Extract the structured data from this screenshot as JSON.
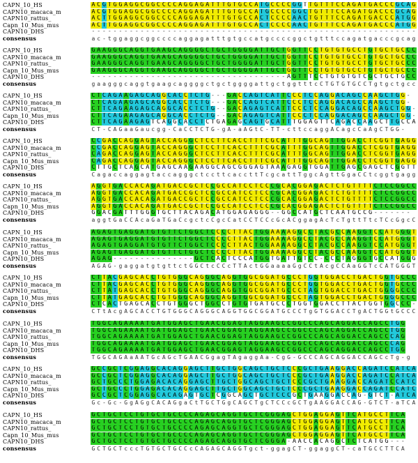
{
  "alignment": {
    "blocks": [
      {
        "rows": [
          {
            "name": "CAPN_10_HS",
            "seq": "ACGTGGAGGCGGCCCCAGGAGATTTGTGCCATGCCCCGGTTGTTTCCAGATGACCCGCAG"
          },
          {
            "name": "CAPN10_macaca_m",
            "seq": "ACGTGGAGGCGGCCCCAGGAGATTTGTGCCATGCCCCGGCTGTTTCCAGATGACCCGCAG"
          },
          {
            "name": "CAPN10_rattus_",
            "seq": "ACTTGGAGGCGGCCCCAGGAGATTTGTGCCACTCCCCAACTGTTTCCAGATGACCCATGG"
          },
          {
            "name": "Capn_10_Mus_mus",
            "seq": "ACTTGGAGGCGGCCCCAGGAGATTTGTGCCACTCCCCAACTGTTTCCAGATGACCCATGG"
          },
          {
            "name": "CAPN10_DHS",
            "seq": "------------------------------------------------------------"
          },
          {
            "name": "consensus",
            "seq": "ac-tggaggcggccccaggagatttgtgccatgccccggctgtttccagatgacccgcag",
            "consensus": true
          }
        ]
      },
      {
        "rows": [
          {
            "name": "CAPN_10_HS",
            "seq": "GAAGGGCAGGTGAAGCAGGGGCTGCTGGGGATTGCTGGTTCCTGTGTGCCTGTGCTGCCC"
          },
          {
            "name": "CAPN10_macaca_m",
            "seq": "GAAGGGCAGGTGAAGCAGGGGCTGCTGGGGATTGCTGGTTCCTGTGTGCCTGTGCTGCCC"
          },
          {
            "name": "CAPN10_rattus_",
            "seq": "GAAGGGCAGGTGAAGCAGGGGCTGCTGGGGATTGCTGGTTCCTGTGTGCCTGTGCTGCCC"
          },
          {
            "name": "Capn_10_Mus_mus",
            "seq": "GAAGGGCAGGTGAAGCAGGGGCTGCTGGGGATTGCTGGTTCCTGTGTGCCTGTGCTGCCC"
          },
          {
            "name": "CAPN10_DHS",
            "seq": "------------------------------------AGTTTCCTGTGTGTCGCTGCTGCC"
          },
          {
            "name": "consensus",
            "seq": "gaagggcaggtgaagcaggggctgctggggattgctggtttcCTGTGTGCCTgtgctgccc",
            "consensus": true
          }
        ]
      },
      {
        "rows": [
          {
            "name": "CAPN_10_HS",
            "seq": "CTCAGAAGAGCAGGCACCTCTG---GACCAGTCATTCCCTCCAGGACAGCCAAGCTGG-"
          },
          {
            "name": "CAPN10_macaca_m",
            "seq": "CTCAGAAGAGCAGGCACCTCTG---GACCAGTCATTCCCTCCAGGACAGCCAAGCTGG-"
          },
          {
            "name": "CAPN10_rattus_",
            "seq": "CTTCAGAAGAGCAGGCACCTCTG--GACAGAGTCATTCCCTCCAGGACAGCCAAGCTGG-"
          },
          {
            "name": "Capn_10_Mus_mus",
            "seq": "CTTCAGAAGAGCAGGCACCTCTG--GACAGAGTCATTCCCTCCAGGACAGCCAAGCTGG-"
          },
          {
            "name": "CAPN10_DHS",
            "seq": "CTTCAGAAGAGTCAGGCACCTCTGAGAGCAGTGCATTTGGAGTTCAGACCAAGCTTGCCA"
          },
          {
            "name": "consensus",
            "seq": "CT-CAGaaGaucgg-CaCCTCTG-gA-aAGtC-TT-cttccaggACagcCaAgCTGG-",
            "consensus": true
          }
        ]
      },
      {
        "rows": [
          {
            "name": "CAPN_10_HS",
            "seq": "CCGACCAGGAGTACCAGGGCTCCTTCACCTTTCGCATTTGGCAGTTGGACCTCGGTGAGG"
          },
          {
            "name": "CAPN10_macaca_m",
            "seq": "CCGACCAGGAGTACCAGGGCTCCTTCACCTTTCGCATTTGGCAGTTGGACCTCGGTGAGG"
          },
          {
            "name": "CAPN10_rattus_",
            "seq": "CAGACCAGGAGTACCAGGGCTCCTTCACCTTTCGCATTTGGCAGTTGGACCTCGGTGAGG"
          },
          {
            "name": "Capn_10_Mus_mus",
            "seq": "CAGACCAGGAGTACCAGGGCTCCTTCACCTTTCGCATTTGGCAGTTGGACCTCGGTGAGG"
          },
          {
            "name": "CAPN10_DHS",
            "seq": "CTTGCTCAGCATGAGCAAGAAGGCAGCGGGAGTAAAGAGGTGGATTGAGCGAGCTCGGTT"
          },
          {
            "name": "consensus",
            "seq": "CagaccaggagtaccagggctccttcaccttTcgcattTggcAgttGgaCCtcggtgagg",
            "consensus": true
          }
        ]
      },
      {
        "rows": [
          {
            "name": "CAPN_10_HS",
            "seq": "AGGTGACCACAGATGACCGCTCCGCCATCCTCCCGCACGGAGACTCTGTTTTCTCCGGCC"
          },
          {
            "name": "CAPN10_macaca_m",
            "seq": "AGGTGACCACAGATGACCGCTCCGCCATCCTCCCGCACGGAGACTCTGTTTTCTCCGGCC"
          },
          {
            "name": "CAPN10_rattus_",
            "seq": "AGGTGACCACAGATGACCGCTCCGCCATCCTCCCGCACGGAGACTCTGTTTTCTCCGGCC"
          },
          {
            "name": "Capn_10_Mus_mus",
            "seq": "AGGTGACCACAGATGACCGCTCCGCCATCCTCCCGCACGGAGACTCTGTTTTCTCCGGCC"
          },
          {
            "name": "CAPN10_DHS",
            "seq": "GGACGATTTGGGTGCTTACAGACATGGAGAGGG--GGCCATGCTCAATGCCG-------"
          },
          {
            "name": "consensus",
            "seq": "aggtGaCCAcaGaTGaCcgctcCgcCatCCTCCcGcACggagAcTcTgttTtcTCcGgcC",
            "consensus": true
          }
        ]
      },
      {
        "rows": [
          {
            "name": "CAPN_10_HS",
            "seq": "AGAGTGAGGATGTGTTCTGGCTCCCCTTACTGGAAAAGGCCTACGCCAAGGTCCATGGGT"
          },
          {
            "name": "CAPN10_macaca_m",
            "seq": "AGAGTGAGGATGTGTTCTGGCTCCCCTTACTGGAAAAGGCCTACGCCAAGGTCCATGGGT"
          },
          {
            "name": "CAPN10_rattus_",
            "seq": "AGAGTGAGGATGTGTTCTGGCTCCCCTTACTGGAAAAGGCCTACGCCAAGGTCCATGGGT"
          },
          {
            "name": "Capn_10_Mus_mus",
            "seq": "AGAGTGAGGATGTGTTCTGGCTCCCCTTACTGGAAAAGGCCTACGCCAAGGTCCATGGGT"
          },
          {
            "name": "CAPN10_DHS",
            "seq": "AGAG---------------GCTCACTCCCATGGTGATTGTCC-CCCTAGGGTGCCATGGGT"
          },
          {
            "name": "consensus",
            "seq": "AGAG-gaggatgtgttctGGCtcCCcTTActGGaaaaGgCCtAcgCCAaGGTcCATGGGT",
            "consensus": true
          }
        ]
      },
      {
        "rows": [
          {
            "name": "CAPN_10_HS",
            "seq": "CTTACGAGCACCTGTGGGCAGGGCAGGTGGCGGATGCCCTGGTGGACCTGACTGGTGCCC"
          },
          {
            "name": "CAPN10_macaca_m",
            "seq": "CTTACGAGCACCTGTGGGCAGGGCAGGTGGCGGATGCCCTGGTGGACCTGACTGGTGCCC"
          },
          {
            "name": "CAPN10_rattus_",
            "seq": "CTTATGAGCACCTGTGGGCAGGGCAGGTGGCGGATGCCCTAGTGGACCTGACTGGGGCCC"
          },
          {
            "name": "Capn_10_Mus_mus",
            "seq": "CTTATGAGCACCTGTGGGCAGGGCAGGTGGCGGATGCCCTAGTGGACCTGACTGGGGCCC"
          },
          {
            "name": "CAPN10_DHS",
            "seq": "CTCACTGAGCACCTGTGGGCTGGCCTGTGTGATGCCCTGGTGGACCTTACTGGTGGCCC-"
          },
          {
            "name": "consensus",
            "seq": "CTtAcgAGCACCTGTGGGCAGGGCAGGTGGCGGATGCCCTgGTGGACCTgACTGGtGCCC",
            "consensus": true
          }
        ]
      },
      {
        "rows": [
          {
            "name": "CAPN_10_HS",
            "seq": "TGGCAGAAAATGATGGAGCTGAACGGAGTAGGAAGCCGGCCCAGCAGGACCAGCCTGG"
          },
          {
            "name": "CAPN10_macaca_m",
            "seq": "TGGCAGAAAATGATGGAGCTGAACGGAGTAGGAAGCCGGCCCAGCAGGACCAGCCTGG"
          },
          {
            "name": "CAPN10_rattus_",
            "seq": "TGGCAGAAAATGATGGAGCTGAACGGAGTAGGAAGCCGGCCCAGCAGGACCAGCCCAG"
          },
          {
            "name": "Capn_10_Mus_mus",
            "seq": "TGGCAGAAAATGATGGAGCTGAACGGAGTAGGAAGCCGGCCCAGCAGGACCAGCCCAG"
          },
          {
            "name": "CAPN10_DHS",
            "seq": "TGGCAGAAAATGATGGAGCTGAACGGAGTAGGAAGCCGGCCCAGCAGGACCAGCCTGG"
          },
          {
            "name": "consensus",
            "seq": "TGGCAGAaAATGcAGcTGAACGgagTAgaggAa-CgG-GCCCAGCAGGACCAGCcTg-g",
            "consensus": true
          }
        ]
      },
      {
        "rows": [
          {
            "name": "CAPN_10_HS",
            "seq": "GCCGCTCGGAGGCACAGGAGCTTGCTGGCAGCTGCTCCCGCTGAAGGACCAGATCCATCA"
          },
          {
            "name": "CAPN10_macaca_m",
            "seq": "GCCGCTCGGAGGCACAGGAGCTTGCTGGCAGCTGCTCCCGCTGAAGGACCAGATCCATCA"
          },
          {
            "name": "CAPN10_rattus_",
            "seq": "GCTGCCCTGGAGACACAGGAGCTTGCTGGCAGCTGCTCCCGCTGAAGGACCAGATCCATCA"
          },
          {
            "name": "Capn_10_Mus_mus",
            "seq": "GCTGCCCTGGAGACACAGGAGCTTGCTGGCAGCTGCTCCCGCTGAAGGACCAGATCCATCA"
          },
          {
            "name": "CAPN10_DHS",
            "seq": "GCCGCTCGGAGGCACAGAGTGCTCGGCAGCTGCTCCCGCTGAAGGACCAG-GTCT-ATCA"
          },
          {
            "name": "consensus",
            "seq": "Gc-Gc-GgAGgCACAGgaCtTGCTGgCAGCTgCTCCcGCTgAAGGACCAG-GTCT-aTCA",
            "consensus": true
          }
        ]
      },
      {
        "rows": [
          {
            "name": "CAPN_10_HS",
            "seq": "GCTGCTCCTGTGCTGCCCCAGAGCAGGTGCTCGGGAGCTGGAGGAGTTCATGCCTTCA"
          },
          {
            "name": "CAPN10_macaca_m",
            "seq": "GCTGCTCCTGTGCTGCCCCAGAGCAGGTGCTCGGGAGCTGGAGGAGTTCATGCCTTCA"
          },
          {
            "name": "CAPN10_rattus_",
            "seq": "GCTGCTCCTGTGCTGCCCCAGAGCAGGTGCTCGGGAGCTGGAGGAGTTCATGCCTTCA"
          },
          {
            "name": "Capn_10_Mus_mus",
            "seq": "GCTGCTCCTGTGCTGCCCCAGAGCAGGTGCTCGGGAGCTGGAGGAGTTCATGCCTTCA"
          },
          {
            "name": "CAPN10_DHS",
            "seq": "GCTGCTCCTGTGCTGCCCCAGAGCAGGTGCTCGGGA-AACCACAGGCTCTCATGG---"
          },
          {
            "name": "consensus",
            "seq": "GCTGCTcccTGTGCTGCCcCAGAGCAGGTgct-ggagCT-ggaggCT-caTGCCTTCA",
            "consensus": true
          }
        ]
      }
    ]
  }
}
